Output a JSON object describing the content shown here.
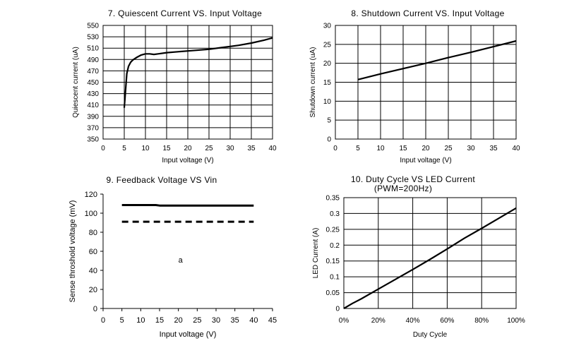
{
  "chart_data": [
    {
      "type": "line",
      "title": "7. Quiescent Current VS. Input Voltage",
      "xlabel": "Input voltage (V)",
      "ylabel": "Quiescent current (uA)",
      "xlim": [
        0,
        40
      ],
      "ylim": [
        350,
        550
      ],
      "xticks": [
        0,
        5,
        10,
        15,
        20,
        25,
        30,
        35,
        40
      ],
      "yticks": [
        350,
        370,
        390,
        410,
        430,
        450,
        470,
        490,
        510,
        530,
        550
      ],
      "grid": true,
      "series": [
        {
          "x": [
            5,
            5.3,
            5.6,
            6,
            6.5,
            7,
            8,
            9,
            10,
            11,
            12,
            13,
            15,
            20,
            25,
            28,
            30,
            32,
            35,
            38,
            40
          ],
          "y": [
            405,
            435,
            465,
            478,
            485,
            489,
            494,
            498,
            500,
            500,
            499,
            500,
            502,
            505,
            508,
            511,
            513,
            515,
            519,
            524,
            528
          ],
          "dash": "solid"
        }
      ]
    },
    {
      "type": "line",
      "title": "8. Shutdown Current VS. Input Voltage",
      "xlabel": "Input voltage (V)",
      "ylabel": "Shutdown current (uA)",
      "xlim": [
        0,
        40
      ],
      "ylim": [
        0,
        30
      ],
      "xticks": [
        0,
        5,
        10,
        15,
        20,
        25,
        30,
        35,
        40
      ],
      "yticks": [
        0,
        5,
        10,
        15,
        20,
        25,
        30
      ],
      "grid": true,
      "series": [
        {
          "x": [
            5,
            10,
            15,
            20,
            25,
            30,
            35,
            40
          ],
          "y": [
            15.7,
            17.2,
            18.6,
            20.0,
            21.5,
            22.9,
            24.4,
            25.9
          ],
          "dash": "solid"
        }
      ]
    },
    {
      "type": "line",
      "title": "9. Feedback Voltage VS Vin",
      "xlabel": "Input voltage (V)",
      "ylabel": "Sense throshold voltage (mV)",
      "xlim": [
        0,
        45
      ],
      "ylim": [
        0,
        120
      ],
      "xticks": [
        0,
        5,
        10,
        15,
        20,
        25,
        30,
        35,
        40,
        45
      ],
      "yticks": [
        0,
        20,
        40,
        60,
        80,
        100,
        120
      ],
      "grid": false,
      "annotation": {
        "text": "a",
        "x": 20,
        "y": 51
      },
      "series": [
        {
          "x": [
            5,
            10,
            14,
            15,
            20,
            25,
            30,
            35,
            40
          ],
          "y": [
            108.5,
            108.5,
            108.5,
            108,
            108,
            108,
            108,
            108,
            108
          ],
          "dash": "solid"
        },
        {
          "x": [
            5,
            40
          ],
          "y": [
            91,
            91
          ],
          "dash": "dashed"
        }
      ]
    },
    {
      "type": "line",
      "title": "10. Duty Cycle VS LED Current",
      "subtitle": "(PWM=200Hz)",
      "xlabel": "Duty Cycle",
      "ylabel": "LED Current (A)",
      "xlim": [
        0,
        100
      ],
      "ylim": [
        0,
        0.35
      ],
      "xticks": [
        0,
        20,
        40,
        60,
        80,
        100
      ],
      "xtick_labels": [
        "0%",
        "20%",
        "40%",
        "60%",
        "80%",
        "100%"
      ],
      "yticks": [
        0,
        0.05,
        0.1,
        0.15,
        0.2,
        0.25,
        0.3,
        0.35
      ],
      "ytick_labels": [
        "0",
        "0.05",
        "0.1",
        "0.15",
        "0.2",
        "0.25",
        "0.3",
        "0.35"
      ],
      "grid": true,
      "series": [
        {
          "x": [
            0,
            5,
            10,
            20,
            30,
            40,
            50,
            60,
            70,
            80,
            90,
            100
          ],
          "y": [
            0,
            0.016,
            0.03,
            0.061,
            0.092,
            0.123,
            0.155,
            0.188,
            0.222,
            0.253,
            0.285,
            0.317
          ],
          "dash": "solid"
        }
      ]
    }
  ]
}
